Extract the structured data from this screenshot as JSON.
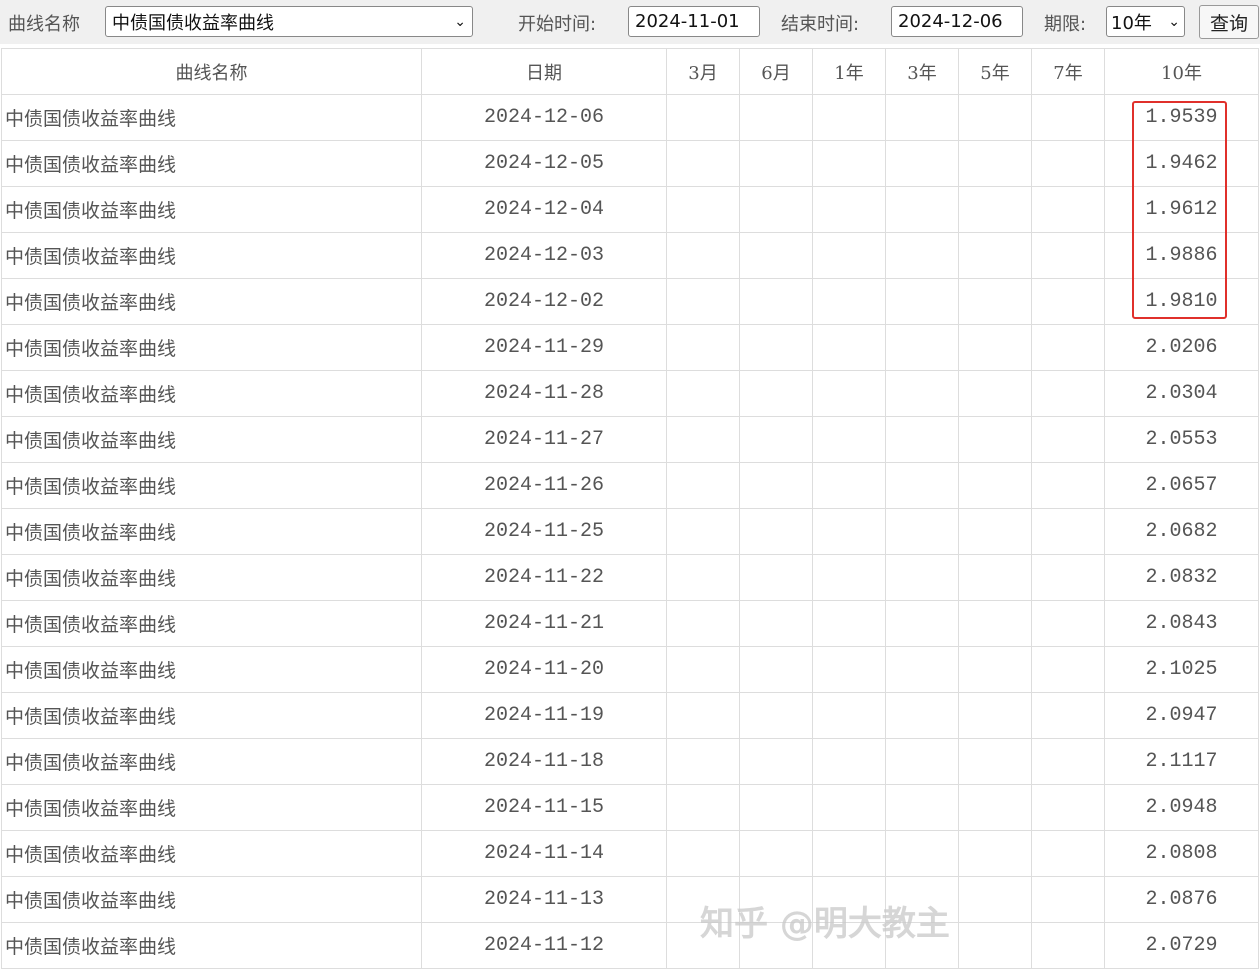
{
  "toolbar": {
    "curve_label": "曲线名称",
    "curve_value": "中债国债收益率曲线",
    "start_label": "开始时间:",
    "start_value": "2024-11-01",
    "end_label": "结束时间:",
    "end_value": "2024-12-06",
    "term_label": "期限:",
    "term_value": "10年",
    "query_label": "查询"
  },
  "table": {
    "headers": [
      "曲线名称",
      "日期",
      "3月",
      "6月",
      "1年",
      "3年",
      "5年",
      "7年",
      "10年"
    ],
    "rows": [
      [
        "中债国债收益率曲线",
        "2024-12-06",
        "1.9539"
      ],
      [
        "中债国债收益率曲线",
        "2024-12-05",
        "1.9462"
      ],
      [
        "中债国债收益率曲线",
        "2024-12-04",
        "1.9612"
      ],
      [
        "中债国债收益率曲线",
        "2024-12-03",
        "1.9886"
      ],
      [
        "中债国债收益率曲线",
        "2024-12-02",
        "1.9810"
      ],
      [
        "中债国债收益率曲线",
        "2024-11-29",
        "2.0206"
      ],
      [
        "中债国债收益率曲线",
        "2024-11-28",
        "2.0304"
      ],
      [
        "中债国债收益率曲线",
        "2024-11-27",
        "2.0553"
      ],
      [
        "中债国债收益率曲线",
        "2024-11-26",
        "2.0657"
      ],
      [
        "中债国债收益率曲线",
        "2024-11-25",
        "2.0682"
      ],
      [
        "中债国债收益率曲线",
        "2024-11-22",
        "2.0832"
      ],
      [
        "中债国债收益率曲线",
        "2024-11-21",
        "2.0843"
      ],
      [
        "中债国债收益率曲线",
        "2024-11-20",
        "2.1025"
      ],
      [
        "中债国债收益率曲线",
        "2024-11-19",
        "2.0947"
      ],
      [
        "中债国债收益率曲线",
        "2024-11-18",
        "2.1117"
      ],
      [
        "中债国债收益率曲线",
        "2024-11-15",
        "2.0948"
      ],
      [
        "中债国债收益率曲线",
        "2024-11-14",
        "2.0808"
      ],
      [
        "中债国债收益率曲线",
        "2024-11-13",
        "2.0876"
      ],
      [
        "中债国债收益率曲线",
        "2024-11-12",
        "2.0729"
      ]
    ]
  },
  "highlight_color": "#e0302b",
  "watermark": "知乎 @明大教主"
}
